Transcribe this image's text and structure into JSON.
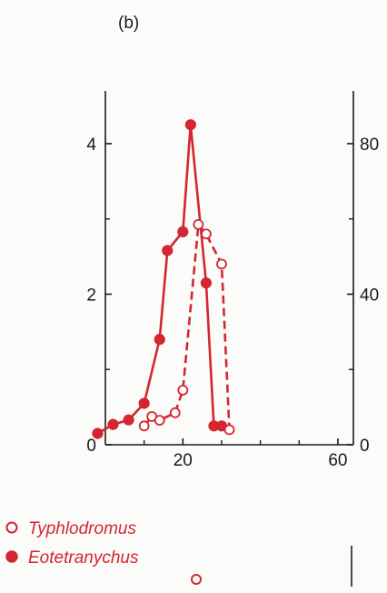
{
  "panel_label": "(b)",
  "colors": {
    "series": "#d42630",
    "axis": "#1a1a1a"
  },
  "chart_data": {
    "type": "line",
    "title": "",
    "xlabel": "",
    "ylabel": "",
    "y2label": "",
    "xlim": [
      0,
      64
    ],
    "ylim": [
      0,
      4.7
    ],
    "y2lim": [
      0,
      94
    ],
    "x_ticks": [
      {
        "value": 20,
        "label": "20"
      },
      {
        "value": 60,
        "label": "60"
      }
    ],
    "x_minor_ticks": [
      10,
      30,
      40,
      50
    ],
    "y_ticks": [
      {
        "value": 0,
        "label": "0"
      },
      {
        "value": 2,
        "label": "2"
      },
      {
        "value": 4,
        "label": "4"
      }
    ],
    "y_minor_ticks": [
      1,
      3
    ],
    "y2_ticks": [
      {
        "value": 0,
        "label": "0"
      },
      {
        "value": 40,
        "label": "40"
      },
      {
        "value": 80,
        "label": "80"
      }
    ],
    "y2_minor_ticks": [
      20,
      60
    ],
    "grid": false,
    "legend_position": "bottom-left",
    "series": [
      {
        "name": "Eotetranychus",
        "axis": "left",
        "marker": "filled",
        "line": "solid",
        "x": [
          -2,
          2,
          6,
          10,
          14,
          16,
          20,
          22,
          26,
          28,
          30
        ],
        "y": [
          0.15,
          0.27,
          0.33,
          0.55,
          1.4,
          2.58,
          2.83,
          4.25,
          2.15,
          0.25,
          0.25
        ]
      },
      {
        "name": "Typhlodromus",
        "axis": "right",
        "marker": "open",
        "line": "dashed",
        "x": [
          10,
          12,
          14,
          18,
          20,
          24,
          26,
          30,
          32
        ],
        "y": [
          5,
          7.5,
          6.5,
          8.5,
          14.5,
          58.5,
          56,
          48,
          4
        ]
      }
    ]
  }
}
